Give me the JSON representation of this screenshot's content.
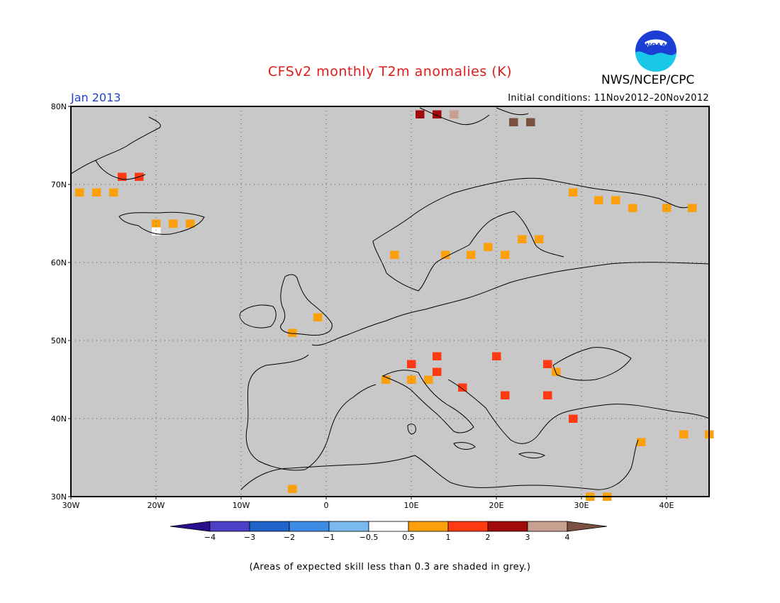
{
  "title": "CFSv2 monthly T2m anomalies (K)",
  "agency": "NWS/NCEP/CPC",
  "logo_text": "NOAA",
  "valid_month": "Jan 2013",
  "initial_conditions": "Initial conditions: 11Nov2012–20Nov2012",
  "footnote": "(Areas of expected skill less than 0.3 are shaded in grey.)",
  "map": {
    "lon_range": [
      -30,
      45
    ],
    "lat_range": [
      30,
      80
    ],
    "lat_ticks": [
      "80N",
      "70N",
      "60N",
      "50N",
      "40N",
      "30N"
    ],
    "lon_ticks": [
      "30W",
      "20W",
      "10W",
      "0",
      "10E",
      "20E",
      "30E",
      "40E"
    ],
    "grid": "dotted",
    "background_color": "#c8c8c8"
  },
  "legend": {
    "tick_labels": [
      "−4",
      "−3",
      "−2",
      "−1",
      "−0.5",
      "0.5",
      "1",
      "2",
      "3",
      "4"
    ],
    "colors": [
      "#2a0f8c",
      "#4c3fc8",
      "#1f64c8",
      "#3c8ce6",
      "#7ab8f0",
      "#ffffff",
      "#fba00b",
      "#ff3a13",
      "#a00a0a",
      "#c8a090",
      "#7b5040"
    ]
  },
  "anomaly_cells": [
    {
      "lon": -29,
      "lat": 69,
      "value": 0.8
    },
    {
      "lon": -27,
      "lat": 69,
      "value": 0.8
    },
    {
      "lon": -25,
      "lat": 69,
      "value": 0.8
    },
    {
      "lon": -24,
      "lat": 71,
      "value": 1.5
    },
    {
      "lon": -22,
      "lat": 71,
      "value": 1.5
    },
    {
      "lon": -20,
      "lat": 65,
      "value": 0.8
    },
    {
      "lon": -18,
      "lat": 65,
      "value": 0.8
    },
    {
      "lon": -16,
      "lat": 65,
      "value": 0.8
    },
    {
      "lon": -20,
      "lat": 64,
      "value": 0.0
    },
    {
      "lon": 11,
      "lat": 79,
      "value": 2.5
    },
    {
      "lon": 13,
      "lat": 79,
      "value": 2.5
    },
    {
      "lon": 15,
      "lat": 79,
      "value": 3.5
    },
    {
      "lon": 22,
      "lat": 78,
      "value": 4.5
    },
    {
      "lon": 24,
      "lat": 78,
      "value": 4.5
    },
    {
      "lon": 8,
      "lat": 61,
      "value": 0.8
    },
    {
      "lon": 14,
      "lat": 61,
      "value": 0.8
    },
    {
      "lon": 17,
      "lat": 61,
      "value": 0.8
    },
    {
      "lon": 19,
      "lat": 62,
      "value": 0.8
    },
    {
      "lon": 21,
      "lat": 61,
      "value": 0.8
    },
    {
      "lon": 23,
      "lat": 63,
      "value": 0.8
    },
    {
      "lon": 25,
      "lat": 63,
      "value": 0.8
    },
    {
      "lon": 29,
      "lat": 69,
      "value": 0.8
    },
    {
      "lon": 32,
      "lat": 68,
      "value": 0.8
    },
    {
      "lon": 34,
      "lat": 68,
      "value": 0.8
    },
    {
      "lon": 36,
      "lat": 67,
      "value": 0.8
    },
    {
      "lon": 40,
      "lat": 67,
      "value": 0.8
    },
    {
      "lon": 43,
      "lat": 67,
      "value": 0.8
    },
    {
      "lon": -1,
      "lat": 53,
      "value": 0.8
    },
    {
      "lon": -4,
      "lat": 51,
      "value": 0.8
    },
    {
      "lon": 10,
      "lat": 47,
      "value": 1.5
    },
    {
      "lon": 13,
      "lat": 48,
      "value": 1.5
    },
    {
      "lon": 20,
      "lat": 48,
      "value": 1.5
    },
    {
      "lon": 26,
      "lat": 47,
      "value": 1.5
    },
    {
      "lon": 27,
      "lat": 46,
      "value": 0.8
    },
    {
      "lon": 7,
      "lat": 45,
      "value": 0.8
    },
    {
      "lon": 10,
      "lat": 45,
      "value": 0.8
    },
    {
      "lon": 12,
      "lat": 45,
      "value": 0.8
    },
    {
      "lon": 13,
      "lat": 46,
      "value": 1.5
    },
    {
      "lon": 16,
      "lat": 44,
      "value": 1.5
    },
    {
      "lon": 21,
      "lat": 43,
      "value": 1.5
    },
    {
      "lon": 26,
      "lat": 43,
      "value": 1.5
    },
    {
      "lon": 29,
      "lat": 40,
      "value": 1.5
    },
    {
      "lon": 37,
      "lat": 37,
      "value": 0.8
    },
    {
      "lon": 42,
      "lat": 38,
      "value": 0.8
    },
    {
      "lon": 45,
      "lat": 38,
      "value": 0.8
    },
    {
      "lon": -4,
      "lat": 31,
      "value": 0.8
    },
    {
      "lon": 31,
      "lat": 30,
      "value": 0.8
    },
    {
      "lon": 33,
      "lat": 30,
      "value": 0.8
    }
  ]
}
